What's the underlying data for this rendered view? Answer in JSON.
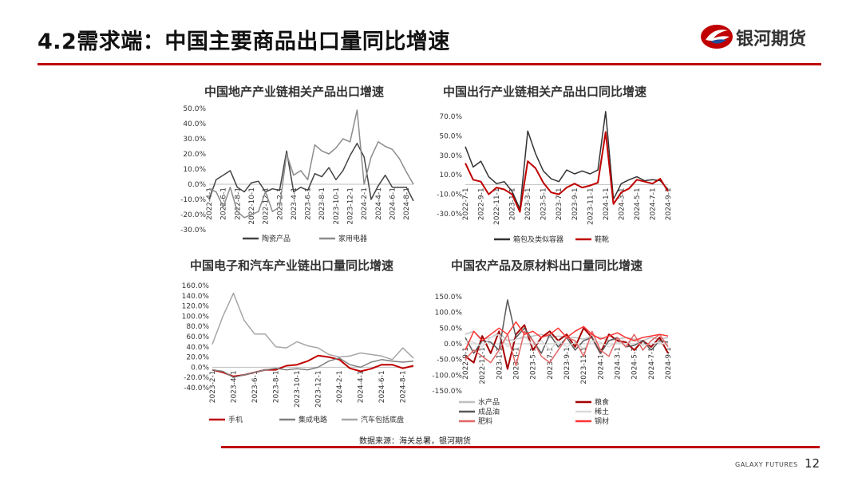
{
  "slide": {
    "title": "4.2需求端：中国主要商品出口量同比增速",
    "brand": "银河期货",
    "source": "数据来源：海关总署，银河期货",
    "footer_brand": "GALAXY FUTURES",
    "page_number": "12",
    "accent_color": "#c00000"
  },
  "chart_data": [
    {
      "type": "line",
      "title": "中国地产产业链相关产品出口增速",
      "x": [
        "2022-4-1",
        "2022-5-1",
        "2022-6-1",
        "2022-7-1",
        "2022-8-1",
        "2022-9-1",
        "2022-10-1",
        "2022-11-1",
        "2022-12-1",
        "2023-1-1",
        "2023-2-1",
        "2023-3-1",
        "2023-4-1",
        "2023-5-1",
        "2023-6-1",
        "2023-7-1",
        "2023-8-1",
        "2023-9-1",
        "2023-10-1",
        "2023-11-1",
        "2023-12-1",
        "2024-1-1",
        "2024-2-1",
        "2024-3-1",
        "2024-4-1",
        "2024-5-1",
        "2024-6-1",
        "2024-7-1",
        "2024-8-1",
        "2024-9-1"
      ],
      "x_tick_labels": [
        "2022-4-1",
        "2022-6-1",
        "2022-8-1",
        "2022-10-1",
        "2022-12-1",
        "2023-2-1",
        "2023-4-1",
        "2023-6-1",
        "2023-8-1",
        "2023-10-1",
        "2023-12-1",
        "2024-2-1",
        "2024-4-1",
        "2024-6-1",
        "2024-8-1"
      ],
      "ylim": [
        -30,
        50
      ],
      "y_ticks": [
        -30,
        -20,
        -10,
        0,
        10,
        20,
        30,
        40,
        50
      ],
      "y_tick_labels": [
        "-30.0%",
        "-20.0%",
        "-10.0%",
        "0.0%",
        "10.0%",
        "20.0%",
        "30.0%",
        "40.0%",
        "50.0%"
      ],
      "series": [
        {
          "name": "陶瓷产品",
          "color": "#444444",
          "values": [
            -10,
            3,
            6,
            9,
            -2,
            -5,
            1,
            2,
            -5,
            -3,
            -4,
            22,
            -5,
            -2,
            -4,
            7,
            5,
            11,
            3,
            9,
            19,
            27,
            18,
            -10,
            -1,
            6,
            -2,
            -2,
            -2,
            -11
          ]
        },
        {
          "name": "家用电器",
          "color": "#8c8c8c",
          "values": [
            -3,
            -5,
            -15,
            -2,
            -18,
            -22,
            -20,
            -18,
            -5,
            -18,
            -15,
            20,
            6,
            9,
            3,
            26,
            22,
            20,
            24,
            30,
            28,
            49,
            0,
            18,
            28,
            25,
            23,
            17,
            8,
            0
          ]
        }
      ]
    },
    {
      "type": "line",
      "title": "中国出行产业链相关产品出口同比增速",
      "x": [
        "2022-7-1",
        "2022-8-1",
        "2022-9-1",
        "2022-10-1",
        "2022-11-1",
        "2022-12-1",
        "2023-1-1",
        "2023-2-1",
        "2023-3-1",
        "2023-4-1",
        "2023-5-1",
        "2023-6-1",
        "2023-7-1",
        "2023-8-1",
        "2023-9-1",
        "2023-10-1",
        "2023-11-1",
        "2023-12-1",
        "2024-1-1",
        "2024-2-1",
        "2024-3-1",
        "2024-4-1",
        "2024-5-1",
        "2024-6-1",
        "2024-7-1",
        "2024-8-1",
        "2024-9-1"
      ],
      "x_tick_labels": [
        "2022-7-1",
        "2022-9-1",
        "2022-11-1",
        "2023-1-1",
        "2023-3-1",
        "2023-5-1",
        "2023-7-1",
        "2023-9-1",
        "2023-11-1",
        "2024-1-1",
        "2024-3-1",
        "2024-5-1",
        "2024-7-1",
        "2024-9-1"
      ],
      "ylim": [
        -30,
        70
      ],
      "y_ticks": [
        -30,
        -10,
        10,
        30,
        50,
        70
      ],
      "y_tick_labels": [
        "-30.0%",
        "-10.0%",
        "10.0%",
        "30.0%",
        "50.0%",
        "70.0%"
      ],
      "series": [
        {
          "name": "箱包及类似容器",
          "color": "#333333",
          "values": [
            39,
            18,
            24,
            8,
            1,
            3,
            -7,
            -25,
            55,
            32,
            14,
            6,
            3,
            15,
            11,
            14,
            11,
            15,
            75,
            -15,
            1,
            5,
            8,
            4,
            5,
            4,
            -5
          ]
        },
        {
          "name": "鞋靴",
          "color": "#c00000",
          "values": [
            22,
            5,
            3,
            -10,
            -3,
            -5,
            -10,
            -28,
            24,
            17,
            2,
            -8,
            -10,
            -3,
            1,
            -3,
            -1,
            2,
            54,
            -20,
            -8,
            -4,
            5,
            3,
            1,
            6,
            -7
          ]
        }
      ]
    },
    {
      "type": "line",
      "title": "中国电子和汽车产业链出口量同比增速",
      "x": [
        "2023-2-1",
        "2023-3-1",
        "2023-4-1",
        "2023-5-1",
        "2023-6-1",
        "2023-7-1",
        "2023-8-1",
        "2023-9-1",
        "2023-10-1",
        "2023-11-1",
        "2023-12-1",
        "2024-1-1",
        "2024-2-1",
        "2024-3-1",
        "2024-4-1",
        "2024-5-1",
        "2024-6-1",
        "2024-7-1",
        "2024-8-1",
        "2024-9-1"
      ],
      "x_tick_labels": [
        "2023-2-1",
        "2023-4-1",
        "2023-6-1",
        "2023-8-1",
        "2023-10-1",
        "2023-12-1",
        "2024-2-1",
        "2024-4-1",
        "2024-6-1",
        "2024-8-1"
      ],
      "ylim": [
        -40,
        160
      ],
      "y_ticks": [
        -40,
        -20,
        0,
        20,
        40,
        60,
        80,
        100,
        120,
        140,
        160
      ],
      "y_tick_labels": [
        "-40.0%",
        "-20.0%",
        "0.0%",
        "20.0%",
        "40.0%",
        "60.0%",
        "80.0%",
        "100.0%",
        "120.0%",
        "140.0%",
        "160.0%"
      ],
      "series": [
        {
          "name": "手机",
          "color": "#c00000",
          "values": [
            -5,
            -10,
            -18,
            -15,
            -10,
            -5,
            -5,
            3,
            5,
            12,
            23,
            20,
            15,
            -2,
            -8,
            -3,
            5,
            5,
            -2,
            3
          ]
        },
        {
          "name": "集成电路",
          "color": "#7f7f7f",
          "values": [
            -5,
            -8,
            -20,
            -15,
            -10,
            -5,
            -2,
            -5,
            -3,
            -5,
            0,
            12,
            18,
            5,
            0,
            10,
            15,
            12,
            10,
            12
          ]
        },
        {
          "name": "汽车包括底盘",
          "color": "#a6a6a6",
          "values": [
            45,
            100,
            145,
            92,
            65,
            65,
            40,
            38,
            50,
            42,
            38,
            25,
            20,
            22,
            28,
            25,
            22,
            15,
            38,
            18
          ]
        }
      ]
    },
    {
      "type": "line",
      "title": "中国农产品及原材料出口量同比增速",
      "x": [
        "2022-9-1",
        "2022-10-1",
        "2022-11-1",
        "2022-12-1",
        "2023-1-1",
        "2023-2-1",
        "2023-3-1",
        "2023-4-1",
        "2023-5-1",
        "2023-6-1",
        "2023-7-1",
        "2023-8-1",
        "2023-9-1",
        "2023-10-1",
        "2023-11-1",
        "2023-12-1",
        "2024-1-1",
        "2024-2-1",
        "2024-3-1",
        "2024-4-1",
        "2024-5-1",
        "2024-6-1",
        "2024-7-1",
        "2024-8-1",
        "2024-9-1"
      ],
      "x_tick_labels": [
        "2022-9-1",
        "2022-11-1",
        "2023-1-1",
        "2023-3-1",
        "2023-5-1",
        "2023-7-1",
        "2023-9-1",
        "2023-11-1",
        "2024-1-1",
        "2024-3-1",
        "2024-5-1",
        "2024-7-1",
        "2024-9-1"
      ],
      "ylim": [
        -150,
        150
      ],
      "y_ticks": [
        -150,
        -100,
        -50,
        0,
        50,
        100,
        150
      ],
      "y_tick_labels": [
        "-150.0%",
        "-100.0%",
        "-50.0%",
        "0.0%",
        "50.0%",
        "100.0%",
        "150.0%"
      ],
      "series": [
        {
          "name": "水产品",
          "color": "#bfbfbf",
          "values": [
            30,
            40,
            15,
            20,
            35,
            10,
            15,
            20,
            25,
            30,
            20,
            25,
            20,
            20,
            15,
            25,
            20,
            10,
            15,
            20,
            15,
            10,
            20,
            15,
            20
          ]
        },
        {
          "name": "粮食",
          "color": "#a50000",
          "values": [
            -40,
            -60,
            25,
            -30,
            40,
            -80,
            30,
            60,
            -20,
            20,
            40,
            10,
            30,
            -10,
            50,
            20,
            -30,
            30,
            10,
            5,
            -20,
            10,
            -10,
            20,
            -30
          ]
        },
        {
          "name": "成品油",
          "color": "#595959",
          "values": [
            20,
            -30,
            10,
            5,
            -20,
            140,
            20,
            50,
            10,
            -30,
            30,
            -10,
            20,
            -20,
            10,
            20,
            -30,
            10,
            20,
            -10,
            -5,
            10,
            -20,
            10,
            5
          ]
        },
        {
          "name": "稀土",
          "color": "#d9d9d9",
          "values": [
            10,
            5,
            -10,
            20,
            30,
            -10,
            15,
            25,
            -5,
            10,
            -20,
            10,
            -10,
            5,
            -15,
            10,
            5,
            -10,
            5,
            0,
            10,
            -5,
            0,
            5,
            -5
          ]
        },
        {
          "name": "肥料",
          "color": "#e06666",
          "values": [
            -50,
            -20,
            -40,
            -60,
            -20,
            30,
            -70,
            40,
            10,
            -40,
            -60,
            -20,
            20,
            10,
            -40,
            40,
            -20,
            -40,
            20,
            -10,
            30,
            -20,
            10,
            30,
            -10
          ]
        },
        {
          "name": "钢材",
          "color": "#ff3333",
          "values": [
            -20,
            40,
            10,
            30,
            50,
            30,
            70,
            30,
            40,
            20,
            30,
            50,
            20,
            40,
            55,
            30,
            15,
            25,
            35,
            20,
            10,
            20,
            25,
            30,
            25
          ]
        }
      ]
    }
  ]
}
